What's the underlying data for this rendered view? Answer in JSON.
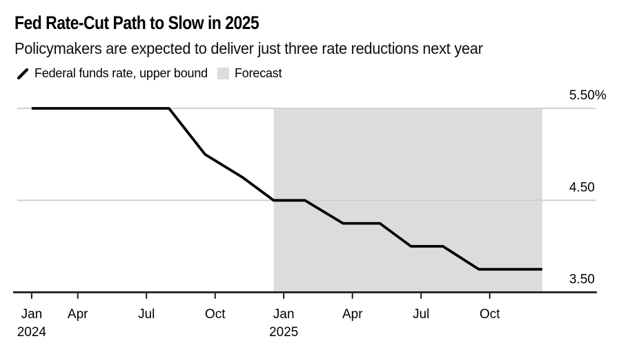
{
  "header": {
    "title": "Fed Rate-Cut Path to Slow in 2025",
    "subtitle": "Policymakers are expected to deliver just three rate reductions next year"
  },
  "legend": {
    "items": [
      {
        "icon": "line-series-icon",
        "label": "Federal funds rate, upper bound"
      },
      {
        "icon": "forecast-swatch-icon",
        "label": "Forecast"
      }
    ],
    "position": "top-left"
  },
  "chart_data": {
    "type": "line",
    "title": "Fed Rate-Cut Path to Slow in 2025",
    "subtitle": "Policymakers are expected to deliver just three rate reductions next year",
    "ylabel": "Federal funds rate, upper bound (%)",
    "ylim": [
      3.5,
      5.5
    ],
    "grid": "horizontal",
    "legend_position": "top",
    "series": [
      {
        "name": "Federal funds rate, upper bound",
        "color": "#000000",
        "points": [
          {
            "date": "2024-01-31",
            "value": 5.5
          },
          {
            "date": "2024-03-20",
            "value": 5.5
          },
          {
            "date": "2024-05-01",
            "value": 5.5
          },
          {
            "date": "2024-06-12",
            "value": 5.5
          },
          {
            "date": "2024-07-31",
            "value": 5.5
          },
          {
            "date": "2024-09-18",
            "value": 5.0
          },
          {
            "date": "2024-11-07",
            "value": 4.75
          },
          {
            "date": "2024-12-18",
            "value": 4.5
          },
          {
            "date": "2025-01-29",
            "value": 4.5
          },
          {
            "date": "2025-03-19",
            "value": 4.25
          },
          {
            "date": "2025-05-07",
            "value": 4.25
          },
          {
            "date": "2025-06-18",
            "value": 4.0
          },
          {
            "date": "2025-07-30",
            "value": 4.0
          },
          {
            "date": "2025-09-17",
            "value": 3.75
          },
          {
            "date": "2025-12-10",
            "value": 3.75
          }
        ]
      }
    ],
    "forecast_band": {
      "name": "Forecast",
      "start": "2024-12-18",
      "end": "2025-12-10",
      "color": "#dcdcdc"
    },
    "y_axis": {
      "min": 3.5,
      "max": 5.5,
      "ticks": [
        {
          "value": 5.5,
          "label": "5.50%",
          "gridline": true
        },
        {
          "value": 4.5,
          "label": "4.50",
          "gridline": true
        },
        {
          "value": 3.5,
          "label": "3.50",
          "gridline": false
        }
      ]
    },
    "x_axis": {
      "ticks": [
        {
          "date": "2024-01-31",
          "label": "Jan",
          "year": "2024"
        },
        {
          "date": "2024-04-01",
          "label": "Apr"
        },
        {
          "date": "2024-07-01",
          "label": "Jul"
        },
        {
          "date": "2024-10-01",
          "label": "Oct"
        },
        {
          "date": "2025-01-01",
          "label": "Jan",
          "year": "2025"
        },
        {
          "date": "2025-04-01",
          "label": "Apr"
        },
        {
          "date": "2025-07-01",
          "label": "Jul"
        },
        {
          "date": "2025-10-01",
          "label": "Oct"
        }
      ]
    },
    "colors": {
      "line": "#000000",
      "band": "#dcdcdc",
      "gridline": "#cfcfcf",
      "axis": "#1a1a1a",
      "text": "#000000",
      "background": "#ffffff"
    }
  }
}
